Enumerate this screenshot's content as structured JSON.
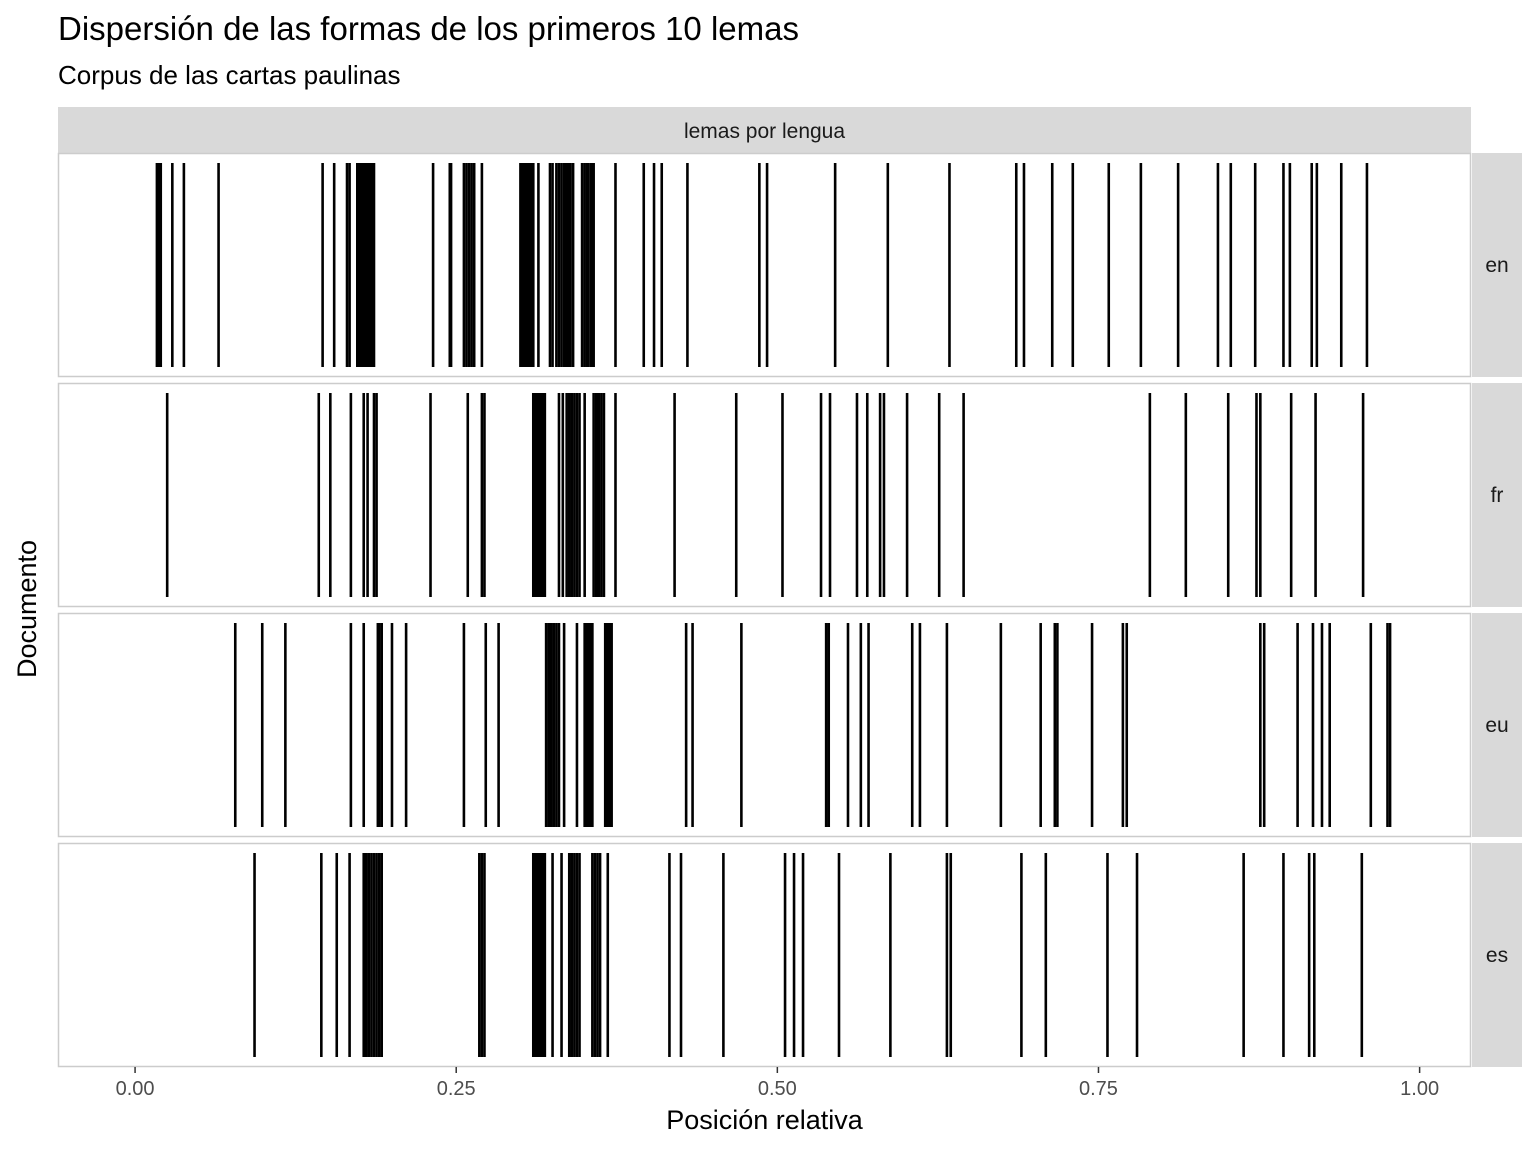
{
  "chart_data": {
    "type": "barcode",
    "title": "Dispersión de las formas de los primeros 10 lemas",
    "subtitle": "Corpus de las cartas paulinas",
    "facet_label": "lemas por lengua",
    "xlabel": "Posición relativa",
    "ylabel": "Documento",
    "xlim": [
      -0.06,
      1.04
    ],
    "x_ticks": [
      {
        "value": 0.0,
        "label": "0.00"
      },
      {
        "value": 0.25,
        "label": "0.25"
      },
      {
        "value": 0.5,
        "label": "0.50"
      },
      {
        "value": 0.75,
        "label": "0.75"
      },
      {
        "value": 1.0,
        "label": "1.00"
      }
    ],
    "grid": false,
    "line_color": "#000000",
    "panels": [
      {
        "name": "en",
        "positions": [
          0.017,
          0.018,
          0.019,
          0.02,
          0.029,
          0.038,
          0.065,
          0.146,
          0.155,
          0.165,
          0.167,
          0.173,
          0.174,
          0.175,
          0.176,
          0.177,
          0.178,
          0.179,
          0.18,
          0.181,
          0.182,
          0.183,
          0.184,
          0.185,
          0.186,
          0.232,
          0.245,
          0.246,
          0.256,
          0.258,
          0.26,
          0.262,
          0.264,
          0.27,
          0.3,
          0.301,
          0.302,
          0.303,
          0.304,
          0.305,
          0.306,
          0.307,
          0.308,
          0.31,
          0.314,
          0.323,
          0.325,
          0.328,
          0.33,
          0.332,
          0.334,
          0.335,
          0.336,
          0.337,
          0.338,
          0.339,
          0.341,
          0.348,
          0.35,
          0.352,
          0.353,
          0.355,
          0.356,
          0.357,
          0.374,
          0.396,
          0.404,
          0.41,
          0.43,
          0.486,
          0.492,
          0.545,
          0.586,
          0.634,
          0.686,
          0.692,
          0.714,
          0.73,
          0.758,
          0.783,
          0.812,
          0.843,
          0.853,
          0.872,
          0.894,
          0.899,
          0.916,
          0.92,
          0.939,
          0.959
        ]
      },
      {
        "name": "fr",
        "positions": [
          0.025,
          0.143,
          0.152,
          0.168,
          0.178,
          0.181,
          0.186,
          0.188,
          0.23,
          0.259,
          0.27,
          0.272,
          0.31,
          0.311,
          0.312,
          0.313,
          0.314,
          0.315,
          0.316,
          0.317,
          0.318,
          0.319,
          0.33,
          0.333,
          0.336,
          0.338,
          0.34,
          0.342,
          0.344,
          0.346,
          0.35,
          0.357,
          0.359,
          0.361,
          0.363,
          0.365,
          0.374,
          0.42,
          0.468,
          0.504,
          0.534,
          0.541,
          0.562,
          0.57,
          0.58,
          0.583,
          0.601,
          0.626,
          0.645,
          0.79,
          0.818,
          0.851,
          0.873,
          0.876,
          0.9,
          0.919,
          0.956
        ]
      },
      {
        "name": "eu",
        "positions": [
          0.078,
          0.099,
          0.117,
          0.168,
          0.178,
          0.189,
          0.19,
          0.192,
          0.2,
          0.211,
          0.256,
          0.273,
          0.283,
          0.32,
          0.322,
          0.324,
          0.326,
          0.328,
          0.33,
          0.334,
          0.344,
          0.35,
          0.351,
          0.352,
          0.353,
          0.354,
          0.355,
          0.356,
          0.366,
          0.367,
          0.368,
          0.369,
          0.37,
          0.371,
          0.429,
          0.434,
          0.472,
          0.538,
          0.54,
          0.555,
          0.565,
          0.571,
          0.605,
          0.611,
          0.632,
          0.674,
          0.705,
          0.716,
          0.718,
          0.745,
          0.769,
          0.772,
          0.876,
          0.879,
          0.905,
          0.917,
          0.924,
          0.93,
          0.962,
          0.975,
          0.977
        ]
      },
      {
        "name": "es",
        "positions": [
          0.093,
          0.145,
          0.157,
          0.167,
          0.178,
          0.18,
          0.182,
          0.184,
          0.186,
          0.188,
          0.19,
          0.192,
          0.268,
          0.27,
          0.272,
          0.31,
          0.311,
          0.312,
          0.313,
          0.314,
          0.315,
          0.316,
          0.317,
          0.318,
          0.319,
          0.325,
          0.332,
          0.338,
          0.34,
          0.342,
          0.344,
          0.346,
          0.356,
          0.358,
          0.36,
          0.362,
          0.368,
          0.416,
          0.425,
          0.458,
          0.506,
          0.513,
          0.52,
          0.548,
          0.588,
          0.632,
          0.635,
          0.69,
          0.709,
          0.757,
          0.78,
          0.863,
          0.894,
          0.914,
          0.918,
          0.955
        ]
      }
    ]
  }
}
